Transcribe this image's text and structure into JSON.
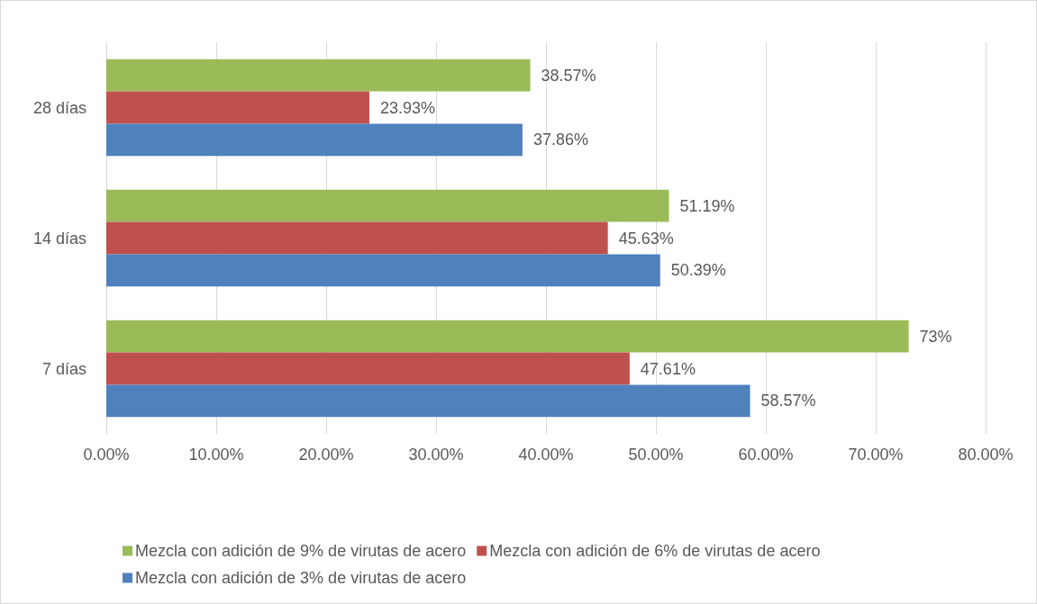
{
  "chart_data": {
    "type": "bar",
    "orientation": "horizontal",
    "categories": [
      "28 días",
      "14 días",
      "7 días"
    ],
    "series": [
      {
        "name": "Mezcla con adición de 9% de virutas de acero",
        "color": "#9bbb59",
        "values": [
          38.57,
          51.19,
          73
        ],
        "value_labels": [
          "38.57%",
          "51.19%",
          "73%"
        ]
      },
      {
        "name": "Mezcla con adición de 6% de virutas de acero",
        "color": "#c0504d",
        "values": [
          23.93,
          45.63,
          47.61
        ],
        "value_labels": [
          "23.93%",
          "45.63%",
          "47.61%"
        ]
      },
      {
        "name": "Mezcla con adición de 3% de virutas de acero",
        "color": "#4f81bd",
        "values": [
          37.86,
          50.39,
          58.57
        ],
        "value_labels": [
          "37.86%",
          "50.39%",
          "58.57%"
        ]
      }
    ],
    "xlim": [
      0,
      80
    ],
    "xticks": [
      {
        "value": 0,
        "label": "0.00%"
      },
      {
        "value": 10,
        "label": "10.00%"
      },
      {
        "value": 20,
        "label": "20.00%"
      },
      {
        "value": 30,
        "label": "30.00%"
      },
      {
        "value": 40,
        "label": "40.00%"
      },
      {
        "value": 50,
        "label": "50.00%"
      },
      {
        "value": 60,
        "label": "60.00%"
      },
      {
        "value": 70,
        "label": "70.00%"
      },
      {
        "value": 80,
        "label": "80.00%"
      }
    ],
    "grid": "x",
    "legend": "bottom"
  }
}
